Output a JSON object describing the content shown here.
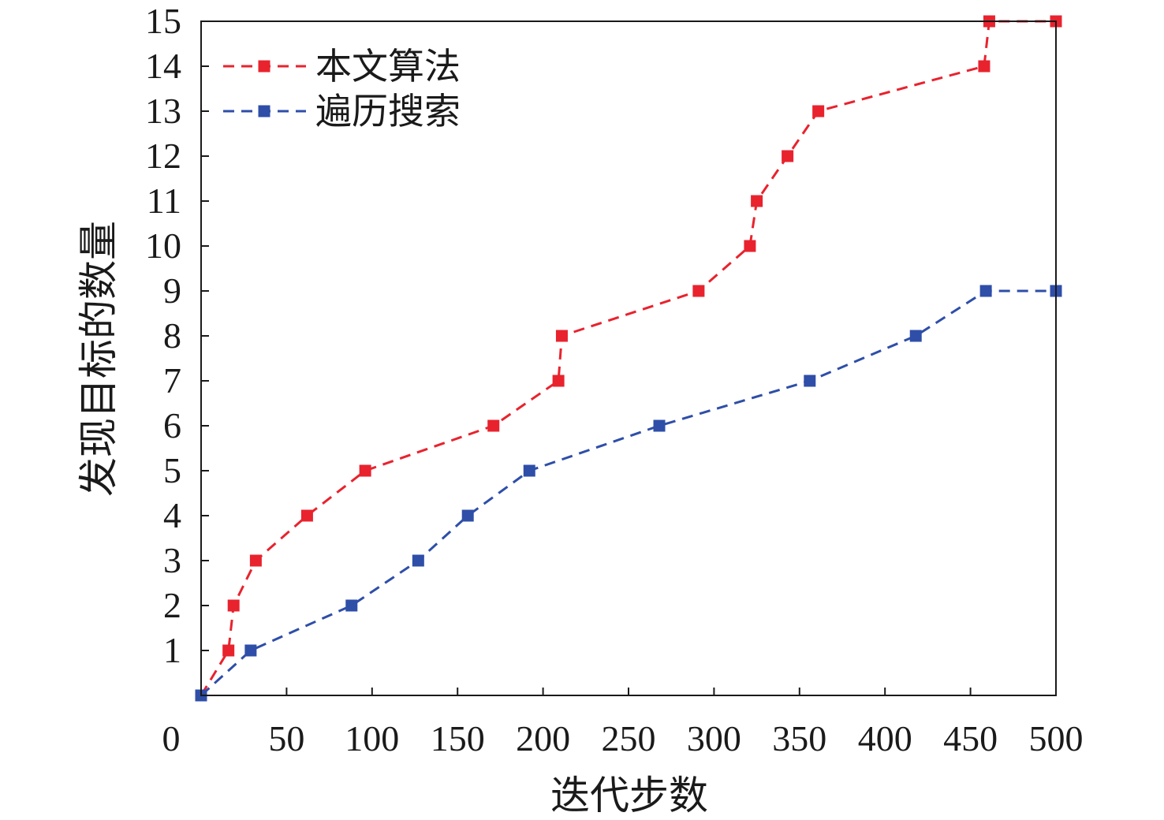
{
  "chart_data": {
    "type": "line",
    "title": "",
    "xlabel": "迭代步数",
    "ylabel": "发现目标的数量",
    "xlim": [
      0,
      500
    ],
    "ylim": [
      0,
      15
    ],
    "x_ticks": [
      0,
      50,
      100,
      150,
      200,
      250,
      300,
      350,
      400,
      450,
      500
    ],
    "y_ticks": [
      1,
      2,
      3,
      4,
      5,
      6,
      7,
      8,
      9,
      10,
      11,
      12,
      13,
      14,
      15
    ],
    "grid": false,
    "legend_position": "top-left",
    "series": [
      {
        "name": "本文算法",
        "color": "#e8232e",
        "line_style": "dashed",
        "marker": "square",
        "points": [
          {
            "x": 0,
            "y": 0
          },
          {
            "x": 16,
            "y": 1
          },
          {
            "x": 19,
            "y": 2
          },
          {
            "x": 32,
            "y": 3
          },
          {
            "x": 62,
            "y": 4
          },
          {
            "x": 96,
            "y": 5
          },
          {
            "x": 171,
            "y": 6
          },
          {
            "x": 209,
            "y": 7
          },
          {
            "x": 211,
            "y": 8
          },
          {
            "x": 291,
            "y": 9
          },
          {
            "x": 321,
            "y": 10
          },
          {
            "x": 325,
            "y": 11
          },
          {
            "x": 343,
            "y": 12
          },
          {
            "x": 361,
            "y": 13
          },
          {
            "x": 458,
            "y": 14
          },
          {
            "x": 461,
            "y": 15
          },
          {
            "x": 500,
            "y": 15
          }
        ]
      },
      {
        "name": "遍历搜索",
        "color": "#2e4ea8",
        "line_style": "dashed",
        "marker": "square",
        "points": [
          {
            "x": 0,
            "y": 0
          },
          {
            "x": 29,
            "y": 1
          },
          {
            "x": 88,
            "y": 2
          },
          {
            "x": 127,
            "y": 3
          },
          {
            "x": 156,
            "y": 4
          },
          {
            "x": 192,
            "y": 5
          },
          {
            "x": 268,
            "y": 6
          },
          {
            "x": 356,
            "y": 7
          },
          {
            "x": 418,
            "y": 8
          },
          {
            "x": 459,
            "y": 9
          },
          {
            "x": 500,
            "y": 9
          }
        ]
      }
    ]
  }
}
